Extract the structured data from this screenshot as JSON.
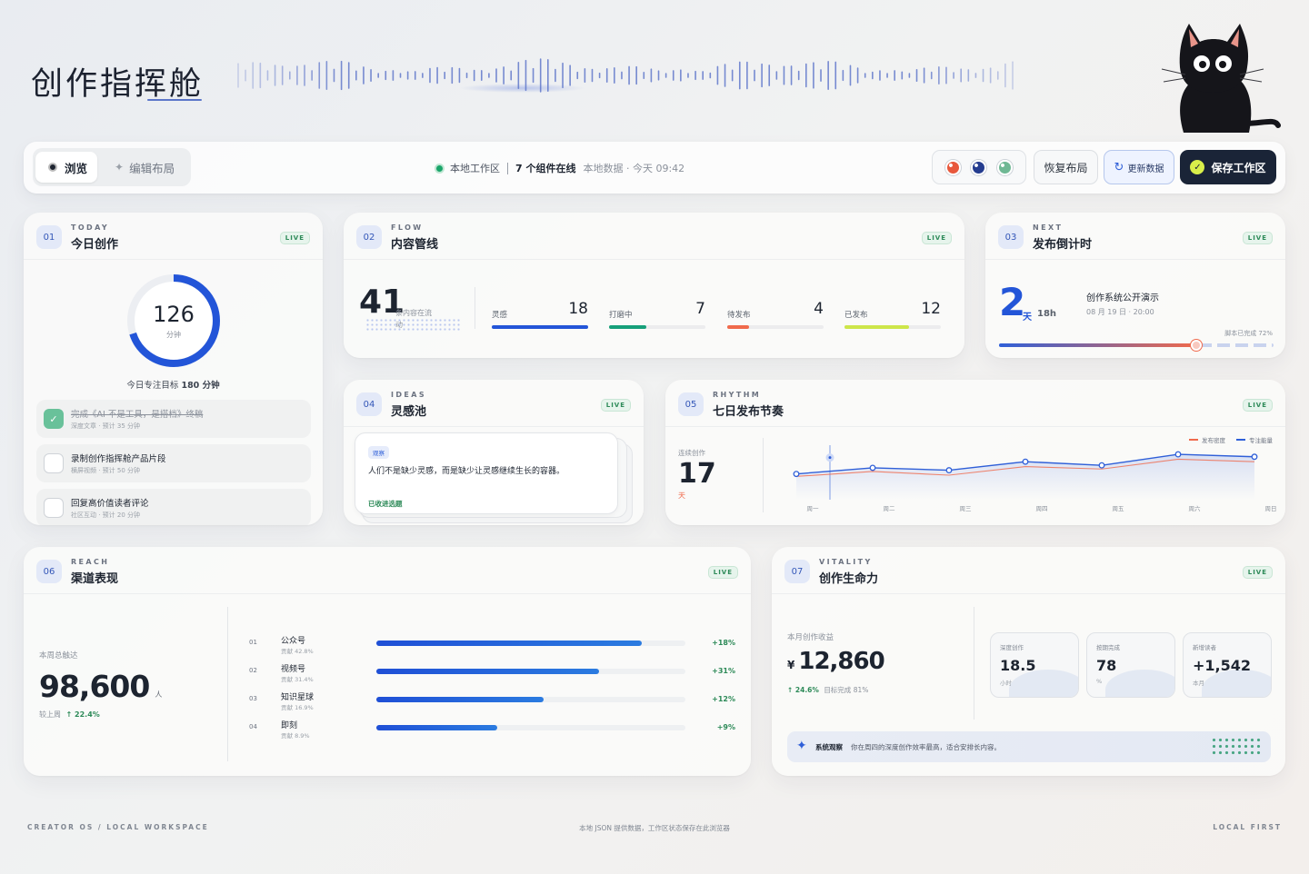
{
  "app": {
    "title": "创作指挥舱"
  },
  "toolbar": {
    "mode_browse": "浏览",
    "mode_edit": "编辑布局",
    "workspace": "本地工作区",
    "widgets_online": "7 个组件在线",
    "data_status": "本地数据 · 今天 09:42",
    "restore": "恢复布局",
    "update": "更新数据",
    "save": "保存工作区",
    "theme_colors": [
      "#e8583c",
      "#243c8f",
      "#6fb894"
    ]
  },
  "live_label": "LIVE",
  "cards": {
    "today": {
      "num": "01",
      "eyebrow": "TODAY",
      "title": "今日创作",
      "minutes": "126",
      "minutes_unit": "分钟",
      "goal_prefix": "今日专注目标",
      "goal_value": "180 分钟",
      "progress": 0.7,
      "tasks": [
        {
          "title": "完成《AI 不是工具，是搭档》终稿",
          "sub": "深度文章 · 预计 35 分钟",
          "done": true
        },
        {
          "title": "录制创作指挥舱产品片段",
          "sub": "横屏视频 · 预计 50 分钟",
          "done": false
        },
        {
          "title": "回复高价值读者评论",
          "sub": "社区互动 · 预计 20 分钟",
          "done": false
        }
      ]
    },
    "flow": {
      "num": "02",
      "eyebrow": "FLOW",
      "title": "内容管线",
      "total": "41",
      "total_label": "条内容在流动",
      "stages": [
        {
          "label": "灵感",
          "value": 18,
          "color": "#2355d8"
        },
        {
          "label": "打磨中",
          "value": 7,
          "color": "#16a07a"
        },
        {
          "label": "待发布",
          "value": 4,
          "color": "#f06a4c"
        },
        {
          "label": "已发布",
          "value": 12,
          "color": "#cde64a"
        }
      ],
      "max_value": 18
    },
    "next": {
      "num": "03",
      "eyebrow": "NEXT",
      "title": "发布倒计时",
      "days": "2",
      "days_unit": "天",
      "hours": "18h",
      "event": "创作系统公开演示",
      "when": "08 月 19 日 · 20:00",
      "progress_label": "脚本已完成 72%",
      "progress": 0.72
    },
    "ideas": {
      "num": "04",
      "eyebrow": "IDEAS",
      "title": "灵感池",
      "tag": "观察",
      "text": "人们不是缺少灵感，而是缺少让灵感继续生长的容器。",
      "action": "已收进选题"
    },
    "rhythm": {
      "num": "05",
      "eyebrow": "RHYTHM",
      "title": "七日发布节奏",
      "streak_label": "连续创作",
      "streak": "17",
      "streak_unit": "天",
      "legend": [
        {
          "name": "发布密度",
          "color": "#f06a4c"
        },
        {
          "name": "专注能量",
          "color": "#2f5fd8"
        }
      ]
    },
    "reach": {
      "num": "06",
      "eyebrow": "REACH",
      "title": "渠道表现",
      "total_label": "本周总触达",
      "total": "98,600",
      "total_unit": "人",
      "delta_prefix": "较上周",
      "delta": "↑ 22.4%",
      "channels": [
        {
          "index": "01",
          "name": "公众号",
          "share": "贡献 42.8%",
          "growth": "+18%",
          "bar": 0.86
        },
        {
          "index": "02",
          "name": "视频号",
          "share": "贡献 31.4%",
          "growth": "+31%",
          "bar": 0.72
        },
        {
          "index": "03",
          "name": "知识星球",
          "share": "贡献 16.9%",
          "growth": "+12%",
          "bar": 0.54
        },
        {
          "index": "04",
          "name": "即刻",
          "share": "贡献 8.9%",
          "growth": "+9%",
          "bar": 0.39
        }
      ]
    },
    "vitality": {
      "num": "07",
      "eyebrow": "VITALITY",
      "title": "创作生命力",
      "income_label": "本月创作收益",
      "currency": "¥",
      "income": "12,860",
      "income_delta": "↑ 24.6%",
      "income_target": "目标完成 81%",
      "minis": [
        {
          "label": "深度创作",
          "value": "18.5",
          "unit": "小时"
        },
        {
          "label": "按期完成",
          "value": "78",
          "unit": "%"
        },
        {
          "label": "新增读者",
          "value": "+1,542",
          "unit": "本月"
        }
      ],
      "insight_label": "系统观察",
      "insight": "你在周四的深度创作效率最高，适合安排长内容。"
    }
  },
  "chart_data": {
    "type": "line",
    "categories": [
      "周一",
      "周二",
      "周三",
      "周四",
      "周五",
      "周六",
      "周日"
    ],
    "series": [
      {
        "name": "发布密度",
        "values": [
          38,
          46,
          40,
          54,
          50,
          66,
          62
        ]
      },
      {
        "name": "专注能量",
        "values": [
          42,
          52,
          48,
          62,
          56,
          74,
          70
        ]
      }
    ],
    "ylim": [
      0,
      100
    ],
    "legend": "top-right",
    "grid": false
  },
  "footer": {
    "left": "CREATOR OS / LOCAL WORKSPACE",
    "center": "本地 JSON 提供数据，工作区状态保存在此浏览器",
    "right": "LOCAL FIRST"
  }
}
